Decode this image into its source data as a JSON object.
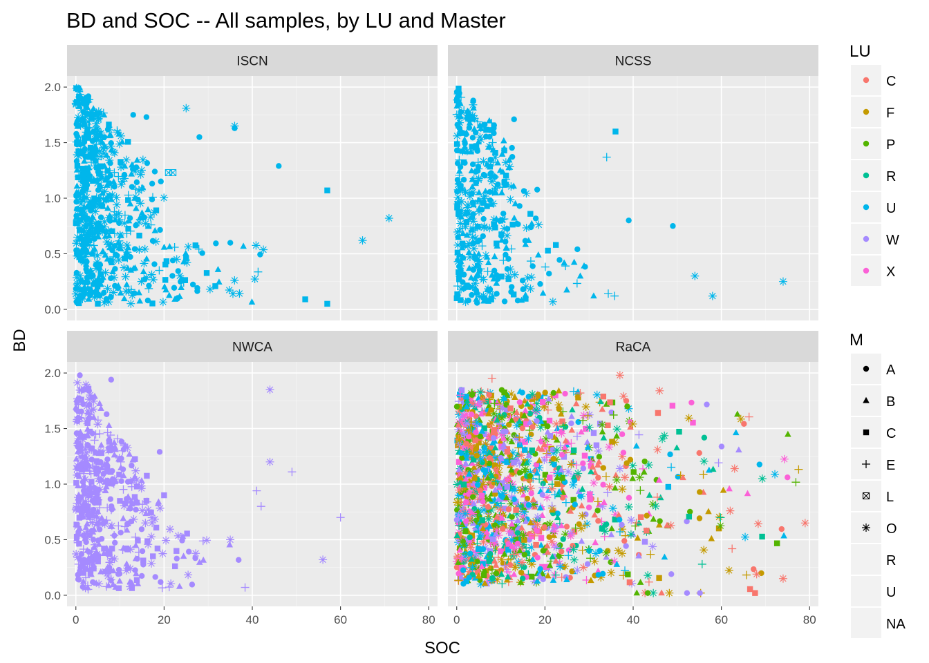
{
  "chart_data": {
    "type": "scatter",
    "title": "BD and SOC -- All samples, by LU and Master",
    "xlabel": "SOC",
    "ylabel": "BD",
    "xlim": [
      -2,
      82
    ],
    "ylim": [
      -0.1,
      2.1
    ],
    "x_ticks": [
      0,
      20,
      40,
      60,
      80
    ],
    "x_tick_labels": [
      "0",
      "20",
      "40",
      "60",
      "80"
    ],
    "y_ticks": [
      0.0,
      0.5,
      1.0,
      1.5,
      2.0
    ],
    "y_tick_labels": [
      "0.0",
      "0.5",
      "1.0",
      "1.5",
      "2.0"
    ],
    "grid": true,
    "facets": [
      {
        "name": "ISCN",
        "lu": [
          "U"
        ],
        "xmax": 72,
        "seed": 11,
        "n": 700,
        "points": [
          [
            25,
            1.81,
            "O"
          ],
          [
            36,
            1.65,
            "O"
          ],
          [
            36,
            1.63,
            "A"
          ],
          [
            65,
            0.62,
            "O"
          ],
          [
            71,
            0.82,
            "O"
          ],
          [
            57,
            1.07,
            "C"
          ],
          [
            16,
            1.73,
            "A"
          ],
          [
            13,
            1.75,
            "A"
          ],
          [
            21,
            1.23,
            "L"
          ],
          [
            22,
            1.23,
            "L"
          ],
          [
            28,
            1.55,
            "A"
          ],
          [
            46,
            1.29,
            "A"
          ],
          [
            52,
            0.09,
            "C"
          ],
          [
            57,
            0.05,
            "C"
          ]
        ]
      },
      {
        "name": "NCSS",
        "lu": [
          "U"
        ],
        "xmax": 74,
        "seed": 23,
        "n": 420,
        "points": [
          [
            36,
            1.6,
            "C"
          ],
          [
            34,
            1.37,
            "E"
          ],
          [
            74,
            0.25,
            "O"
          ],
          [
            49,
            0.75,
            "A"
          ],
          [
            39,
            0.8,
            "A"
          ],
          [
            13,
            1.71,
            "A"
          ],
          [
            0,
            0.1,
            "C"
          ],
          [
            58,
            0.12,
            "O"
          ],
          [
            54,
            0.3,
            "O"
          ]
        ]
      },
      {
        "name": "NWCA",
        "lu": [
          "W"
        ],
        "xmax": 62,
        "seed": 37,
        "n": 520,
        "points": [
          [
            44,
            1.85,
            "O"
          ],
          [
            44,
            1.2,
            "O"
          ],
          [
            49,
            1.11,
            "E"
          ],
          [
            60,
            0.7,
            "E"
          ],
          [
            41,
            0.94,
            "E"
          ],
          [
            42,
            0.8,
            "E"
          ],
          [
            8,
            1.94,
            "A"
          ],
          [
            19,
            1.29,
            "A"
          ],
          [
            20,
            0.9,
            "C"
          ],
          [
            16,
            0.85,
            "C"
          ],
          [
            35,
            0.5,
            "O"
          ],
          [
            56,
            0.32,
            "O"
          ]
        ]
      },
      {
        "name": "RaCA",
        "lu": [
          "C",
          "F",
          "P",
          "R",
          "U",
          "W",
          "X"
        ],
        "xmax": 79,
        "seed": 53,
        "n": 1500,
        "points": [
          [
            37,
            1.98,
            "O"
          ],
          [
            46,
            1.84,
            "O"
          ],
          [
            79,
            0.65,
            "O"
          ],
          [
            74,
            0.15,
            "O"
          ],
          [
            63,
            1.14,
            "O"
          ],
          [
            62,
            0.76,
            "O"
          ],
          [
            68,
            0.19,
            "O"
          ],
          [
            55,
            1.28,
            "A"
          ],
          [
            8,
            1.95,
            "E"
          ],
          [
            28,
            1.82,
            "E"
          ]
        ]
      }
    ],
    "legend_lu": {
      "title": "LU",
      "entries": [
        {
          "label": "C",
          "color": "#F8766D"
        },
        {
          "label": "F",
          "color": "#C49A00"
        },
        {
          "label": "P",
          "color": "#53B400"
        },
        {
          "label": "R",
          "color": "#00C094"
        },
        {
          "label": "U",
          "color": "#00B6EB"
        },
        {
          "label": "W",
          "color": "#A58AFF"
        },
        {
          "label": "X",
          "color": "#FB61D7"
        }
      ]
    },
    "legend_m": {
      "title": "M",
      "entries": [
        {
          "label": "A",
          "shape": "A"
        },
        {
          "label": "B",
          "shape": "B"
        },
        {
          "label": "C",
          "shape": "C"
        },
        {
          "label": "E",
          "shape": "E"
        },
        {
          "label": "L",
          "shape": "L"
        },
        {
          "label": "O",
          "shape": "O"
        },
        {
          "label": "R",
          "shape": ""
        },
        {
          "label": "U",
          "shape": ""
        },
        {
          "label": "NA",
          "shape": ""
        }
      ]
    },
    "legend_placement": "right"
  }
}
